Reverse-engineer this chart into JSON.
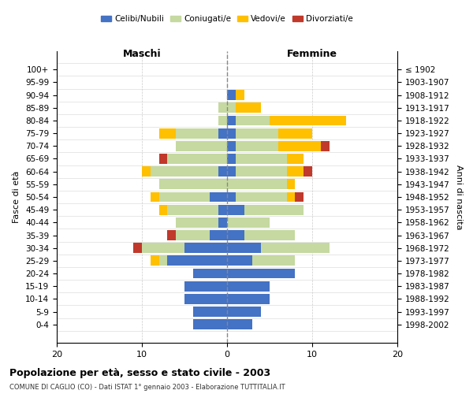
{
  "age_groups": [
    "0-4",
    "5-9",
    "10-14",
    "15-19",
    "20-24",
    "25-29",
    "30-34",
    "35-39",
    "40-44",
    "45-49",
    "50-54",
    "55-59",
    "60-64",
    "65-69",
    "70-74",
    "75-79",
    "80-84",
    "85-89",
    "90-94",
    "95-99",
    "100+"
  ],
  "birth_years": [
    "1998-2002",
    "1993-1997",
    "1988-1992",
    "1983-1987",
    "1978-1982",
    "1973-1977",
    "1968-1972",
    "1963-1967",
    "1958-1962",
    "1953-1957",
    "1948-1952",
    "1943-1947",
    "1938-1942",
    "1933-1937",
    "1928-1932",
    "1923-1927",
    "1918-1922",
    "1913-1917",
    "1908-1912",
    "1903-1907",
    "≤ 1902"
  ],
  "male_celibe": [
    4,
    4,
    5,
    5,
    4,
    7,
    5,
    2,
    1,
    1,
    2,
    0,
    1,
    0,
    0,
    1,
    0,
    0,
    0,
    0,
    0
  ],
  "male_coniugato": [
    0,
    0,
    0,
    0,
    0,
    1,
    5,
    4,
    5,
    6,
    6,
    8,
    8,
    7,
    6,
    5,
    1,
    1,
    0,
    0,
    0
  ],
  "male_vedovo": [
    0,
    0,
    0,
    0,
    0,
    1,
    0,
    0,
    0,
    1,
    1,
    0,
    1,
    0,
    0,
    2,
    0,
    0,
    0,
    0,
    0
  ],
  "male_divorziato": [
    0,
    0,
    0,
    0,
    0,
    0,
    1,
    1,
    0,
    0,
    0,
    0,
    0,
    1,
    0,
    0,
    0,
    0,
    0,
    0,
    0
  ],
  "female_celibe": [
    3,
    4,
    5,
    5,
    8,
    3,
    4,
    2,
    0,
    2,
    1,
    0,
    1,
    1,
    1,
    1,
    1,
    0,
    1,
    0,
    0
  ],
  "female_coniugato": [
    0,
    0,
    0,
    0,
    0,
    5,
    8,
    6,
    5,
    7,
    6,
    7,
    6,
    6,
    5,
    5,
    4,
    1,
    0,
    0,
    0
  ],
  "female_vedovo": [
    0,
    0,
    0,
    0,
    0,
    0,
    0,
    0,
    0,
    0,
    1,
    1,
    2,
    2,
    5,
    4,
    9,
    3,
    1,
    0,
    0
  ],
  "female_divorziato": [
    0,
    0,
    0,
    0,
    0,
    0,
    0,
    0,
    0,
    0,
    1,
    0,
    1,
    0,
    1,
    0,
    0,
    0,
    0,
    0,
    0
  ],
  "colors": {
    "celibe": "#4472c4",
    "coniugato": "#c5d9a0",
    "vedovo": "#ffc000",
    "divorziato": "#c0392b"
  },
  "xlim": [
    -20,
    20
  ],
  "xticks": [
    -20,
    -10,
    0,
    10,
    20
  ],
  "xticklabels": [
    "20",
    "10",
    "0",
    "10",
    "20"
  ],
  "title": "Popolazione per età, sesso e stato civile - 2003",
  "subtitle": "COMUNE DI CAGLIO (CO) - Dati ISTAT 1° gennaio 2003 - Elaborazione TUTTITALIA.IT",
  "ylabel_left": "Fasce di età",
  "ylabel_right": "Anni di nascita",
  "label_maschi": "Maschi",
  "label_femmine": "Femmine",
  "legend_labels": [
    "Celibi/Nubili",
    "Coniugati/e",
    "Vedovi/e",
    "Divorziati/e"
  ],
  "background_color": "#ffffff",
  "grid_color": "#cccccc"
}
